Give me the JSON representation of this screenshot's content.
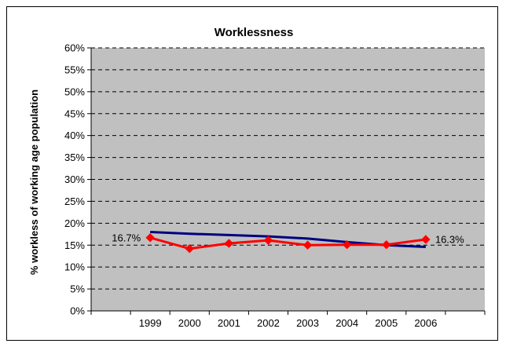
{
  "chart_data": {
    "type": "line",
    "title": "Worklessness",
    "xlabel": "",
    "ylabel": "% workless of working age population",
    "categories": [
      "1999",
      "2000",
      "2001",
      "2002",
      "2003",
      "2004",
      "2005",
      "2006"
    ],
    "ylim": [
      0,
      60
    ],
    "yticks": [
      "0%",
      "5%",
      "10%",
      "15%",
      "20%",
      "25%",
      "30%",
      "35%",
      "40%",
      "45%",
      "50%",
      "55%",
      "60%"
    ],
    "ytick_values": [
      0,
      5,
      10,
      15,
      20,
      25,
      30,
      35,
      40,
      45,
      50,
      55,
      60
    ],
    "grid": true,
    "legend": "none",
    "plot_background": "#c0c0c0",
    "series": [
      {
        "color": "#000080",
        "marker": "none",
        "values": [
          18.0,
          17.6,
          17.3,
          17.0,
          16.5,
          15.7,
          15.0,
          14.6
        ]
      },
      {
        "color": "#ff0000",
        "marker": "diamond",
        "values": [
          16.7,
          14.2,
          15.4,
          16.1,
          15.0,
          15.1,
          15.1,
          16.3
        ]
      }
    ],
    "data_labels": [
      {
        "text": "16.7%",
        "series": 1,
        "index": 0,
        "side": "left"
      },
      {
        "text": "16.3%",
        "series": 1,
        "index": 7,
        "side": "right"
      }
    ]
  }
}
